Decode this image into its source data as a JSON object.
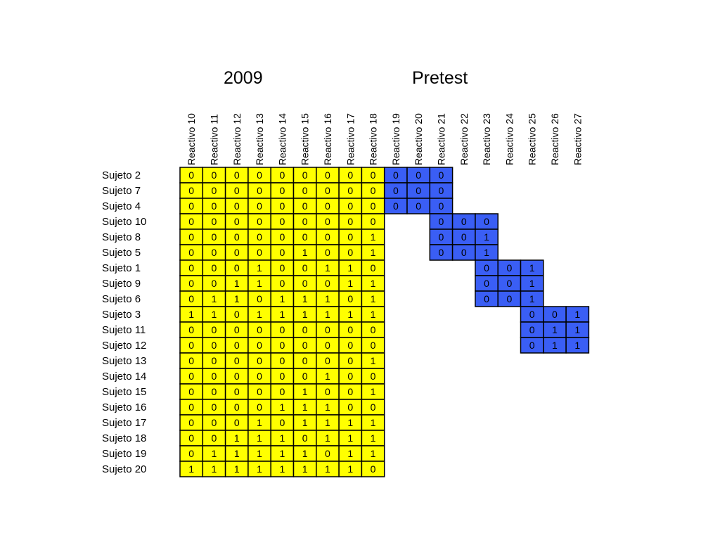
{
  "groups": {
    "first": "2009",
    "second": "Pretest"
  },
  "colors": {
    "group_2009": "#ffff00",
    "group_pretest": "#3a5ef5",
    "border": "#000000",
    "text": "#000000"
  },
  "chart_data": {
    "type": "table",
    "columns": [
      "Reactivo 10",
      "Reactivo 11",
      "Reactivo 12",
      "Reactivo 13",
      "Reactivo 14",
      "Reactivo 15",
      "Reactivo 16",
      "Reactivo 17",
      "Reactivo 18",
      "Reactivo 19",
      "Reactivo 20",
      "Reactivo 21",
      "Reactivo 22",
      "Reactivo 23",
      "Reactivo 24",
      "Reactivo 25",
      "Reactivo 26",
      "Reactivo 27"
    ],
    "rows": [
      {
        "label": "Sujeto 2",
        "values2009": [
          0,
          0,
          0,
          0,
          0,
          0,
          0,
          0,
          0
        ],
        "pretest_start_column": "Reactivo 19",
        "pretest": [
          0,
          0,
          0
        ]
      },
      {
        "label": "Sujeto 7",
        "values2009": [
          0,
          0,
          0,
          0,
          0,
          0,
          0,
          0,
          0
        ],
        "pretest_start_column": "Reactivo 19",
        "pretest": [
          0,
          0,
          0
        ]
      },
      {
        "label": "Sujeto 4",
        "values2009": [
          0,
          0,
          0,
          0,
          0,
          0,
          0,
          0,
          0
        ],
        "pretest_start_column": "Reactivo 19",
        "pretest": [
          0,
          0,
          0
        ]
      },
      {
        "label": "Sujeto 10",
        "values2009": [
          0,
          0,
          0,
          0,
          0,
          0,
          0,
          0,
          0
        ],
        "pretest_start_column": "Reactivo 21",
        "pretest": [
          0,
          0,
          0
        ]
      },
      {
        "label": "Sujeto 8",
        "values2009": [
          0,
          0,
          0,
          0,
          0,
          0,
          0,
          0,
          1
        ],
        "pretest_start_column": "Reactivo 21",
        "pretest": [
          0,
          0,
          1
        ]
      },
      {
        "label": "Sujeto 5",
        "values2009": [
          0,
          0,
          0,
          0,
          0,
          1,
          0,
          0,
          1
        ],
        "pretest_start_column": "Reactivo 21",
        "pretest": [
          0,
          0,
          1
        ]
      },
      {
        "label": "Sujeto 1",
        "values2009": [
          0,
          0,
          0,
          1,
          0,
          0,
          1,
          1,
          0
        ],
        "pretest_start_column": "Reactivo 23",
        "pretest": [
          0,
          0,
          1
        ]
      },
      {
        "label": "Sujeto 9",
        "values2009": [
          0,
          0,
          1,
          1,
          0,
          0,
          0,
          1,
          1
        ],
        "pretest_start_column": "Reactivo 23",
        "pretest": [
          0,
          0,
          1
        ]
      },
      {
        "label": "Sujeto 6",
        "values2009": [
          0,
          1,
          1,
          0,
          1,
          1,
          1,
          0,
          1
        ],
        "pretest_start_column": "Reactivo 23",
        "pretest": [
          0,
          0,
          1
        ]
      },
      {
        "label": "Sujeto 3",
        "values2009": [
          1,
          1,
          0,
          1,
          1,
          1,
          1,
          1,
          1
        ],
        "pretest_start_column": "Reactivo 25",
        "pretest": [
          0,
          0,
          1
        ]
      },
      {
        "label": "Sujeto 11",
        "values2009": [
          0,
          0,
          0,
          0,
          0,
          0,
          0,
          0,
          0
        ],
        "pretest_start_column": "Reactivo 25",
        "pretest": [
          0,
          1,
          1
        ]
      },
      {
        "label": "Sujeto 12",
        "values2009": [
          0,
          0,
          0,
          0,
          0,
          0,
          0,
          0,
          0
        ],
        "pretest_start_column": "Reactivo 25",
        "pretest": [
          0,
          1,
          1
        ]
      },
      {
        "label": "Sujeto 13",
        "values2009": [
          0,
          0,
          0,
          0,
          0,
          0,
          0,
          0,
          1
        ],
        "pretest_start_column": null,
        "pretest": []
      },
      {
        "label": "Sujeto 14",
        "values2009": [
          0,
          0,
          0,
          0,
          0,
          0,
          1,
          0,
          0
        ],
        "pretest_start_column": null,
        "pretest": []
      },
      {
        "label": "Sujeto 15",
        "values2009": [
          0,
          0,
          0,
          0,
          0,
          1,
          0,
          0,
          1
        ],
        "pretest_start_column": null,
        "pretest": []
      },
      {
        "label": "Sujeto 16",
        "values2009": [
          0,
          0,
          0,
          0,
          1,
          1,
          1,
          0,
          0
        ],
        "pretest_start_column": null,
        "pretest": []
      },
      {
        "label": "Sujeto 17",
        "values2009": [
          0,
          0,
          0,
          1,
          0,
          1,
          1,
          1,
          1
        ],
        "pretest_start_column": null,
        "pretest": []
      },
      {
        "label": "Sujeto 18",
        "values2009": [
          0,
          0,
          1,
          1,
          1,
          0,
          1,
          1,
          1
        ],
        "pretest_start_column": null,
        "pretest": []
      },
      {
        "label": "Sujeto 19",
        "values2009": [
          0,
          1,
          1,
          1,
          1,
          1,
          0,
          1,
          1
        ],
        "pretest_start_column": null,
        "pretest": []
      },
      {
        "label": "Sujeto 20",
        "values2009": [
          1,
          1,
          1,
          1,
          1,
          1,
          1,
          1,
          0
        ],
        "pretest_start_column": null,
        "pretest": []
      }
    ]
  }
}
